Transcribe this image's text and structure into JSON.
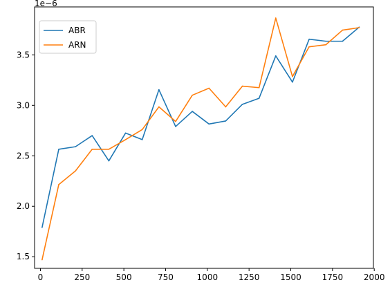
{
  "chart_data": {
    "type": "line",
    "title": "",
    "xlabel": "",
    "ylabel": "",
    "y_offset_text": "1e−6",
    "xlim": [
      -35,
      1995
    ],
    "ylim": [
      1.385e-06,
      3.975e-06
    ],
    "x_ticks": [
      0,
      250,
      500,
      750,
      1000,
      1250,
      1500,
      1750,
      2000
    ],
    "x_tick_labels": [
      "0",
      "250",
      "500",
      "750",
      "1000",
      "1250",
      "1500",
      "1750",
      "2000"
    ],
    "y_ticks": [
      1.5e-06,
      2e-06,
      2.5e-06,
      3e-06,
      3.5e-06
    ],
    "y_tick_labels": [
      "1.5",
      "2.0",
      "2.5",
      "3.0",
      "3.5"
    ],
    "grid": false,
    "legend_position": "top-left",
    "x": [
      10,
      110,
      210,
      310,
      410,
      510,
      610,
      710,
      810,
      910,
      1010,
      1110,
      1210,
      1310,
      1410,
      1510,
      1610,
      1710,
      1810,
      1910
    ],
    "series": [
      {
        "name": "ABR",
        "color": "#1f77b4",
        "values": [
          1.79e-06,
          2.565e-06,
          2.59e-06,
          2.7e-06,
          2.45e-06,
          2.725e-06,
          2.66e-06,
          3.155e-06,
          2.79e-06,
          2.94e-06,
          2.815e-06,
          2.845e-06,
          3.01e-06,
          3.07e-06,
          3.49e-06,
          3.23e-06,
          3.655e-06,
          3.635e-06,
          3.635e-06,
          3.775e-06
        ]
      },
      {
        "name": "ARN",
        "color": "#ff7f0e",
        "values": [
          1.47e-06,
          2.215e-06,
          2.35e-06,
          2.565e-06,
          2.565e-06,
          2.66e-06,
          2.76e-06,
          2.985e-06,
          2.84e-06,
          3.1e-06,
          3.17e-06,
          2.985e-06,
          3.19e-06,
          3.175e-06,
          3.865e-06,
          3.285e-06,
          3.58e-06,
          3.6e-06,
          3.745e-06,
          3.77e-06
        ]
      }
    ]
  }
}
